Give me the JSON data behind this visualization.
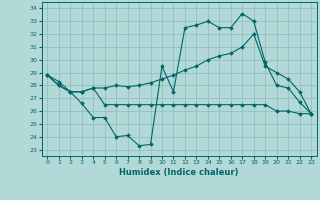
{
  "title": "",
  "xlabel": "Humidex (Indice chaleur)",
  "bg_color": "#b2d8d8",
  "grid_color": "#8bbcbc",
  "line_color": "#006666",
  "xlim": [
    -0.5,
    23.5
  ],
  "ylim": [
    22.5,
    34.5
  ],
  "yticks": [
    23,
    24,
    25,
    26,
    27,
    28,
    29,
    30,
    31,
    32,
    33,
    34
  ],
  "xticks": [
    0,
    1,
    2,
    3,
    4,
    5,
    6,
    7,
    8,
    9,
    10,
    11,
    12,
    13,
    14,
    15,
    16,
    17,
    18,
    19,
    20,
    21,
    22,
    23
  ],
  "series": [
    [
      28.8,
      28.3,
      27.5,
      26.6,
      25.5,
      25.5,
      24.0,
      24.1,
      23.3,
      23.4,
      29.5,
      27.5,
      32.5,
      32.7,
      33.0,
      32.5,
      32.5,
      33.6,
      33.0,
      29.8,
      28.0,
      27.8,
      26.7,
      25.8
    ],
    [
      28.8,
      28.0,
      27.5,
      27.5,
      27.8,
      27.8,
      28.0,
      27.9,
      28.0,
      28.2,
      28.5,
      28.8,
      29.2,
      29.5,
      30.0,
      30.3,
      30.5,
      31.0,
      32.0,
      29.5,
      29.0,
      28.5,
      27.5,
      25.8
    ],
    [
      28.8,
      28.0,
      27.5,
      27.5,
      27.8,
      26.5,
      26.5,
      26.5,
      26.5,
      26.5,
      26.5,
      26.5,
      26.5,
      26.5,
      26.5,
      26.5,
      26.5,
      26.5,
      26.5,
      26.5,
      26.0,
      26.0,
      25.8,
      25.8
    ]
  ]
}
